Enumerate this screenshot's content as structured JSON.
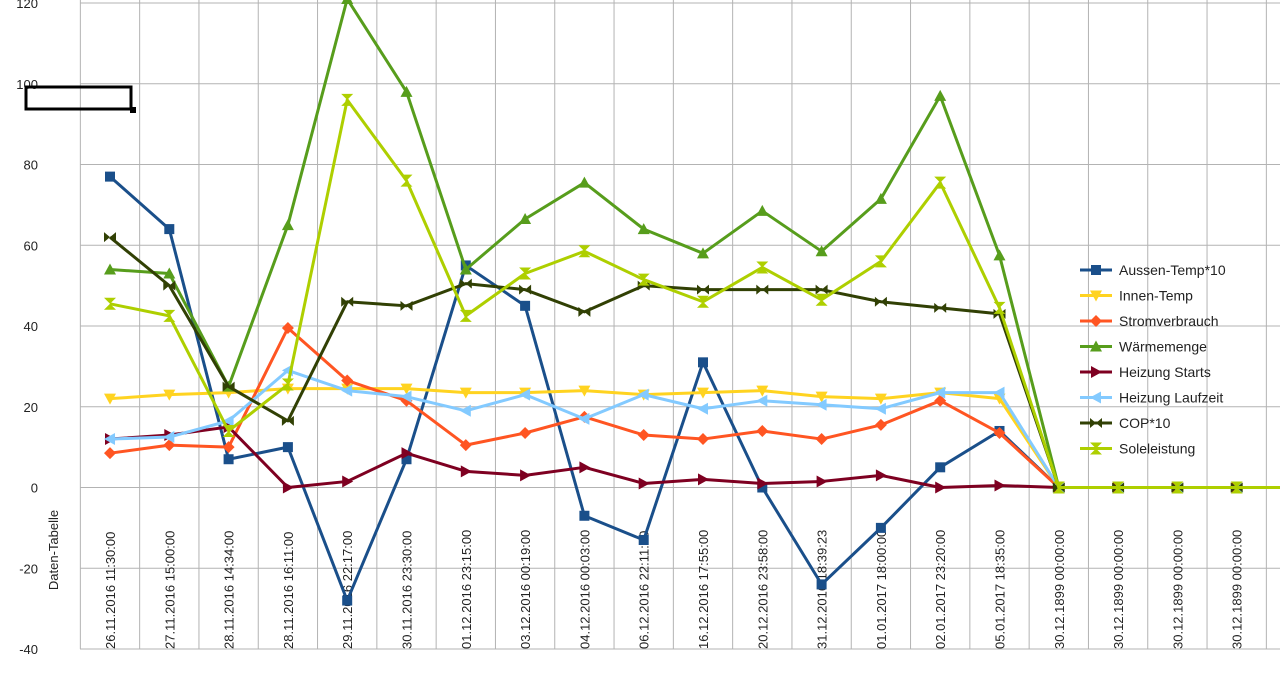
{
  "chart_data": {
    "type": "line",
    "title": "",
    "xlabel": "",
    "ylabel": "Daten-Tabelle",
    "ylim": [
      -40,
      120
    ],
    "yticks": [
      -40,
      -20,
      0,
      20,
      40,
      60,
      80,
      100,
      120
    ],
    "grid": true,
    "legend_position": "right",
    "categories": [
      "26.11.2016 11:30:00",
      "27.11.2016 15:00:00",
      "28.11.2016 14:34:00",
      "28.11.2016 16:11:00",
      "29.11.2016 22:17:00",
      "30.11.2016 23:30:00",
      "01.12.2016 23:15:00",
      "03.12.2016 00:19:00",
      "04.12.2016 00:03:00",
      "06.12.2016 22:11:00",
      "16.12.2016 17:55:00",
      "20.12.2016 23:58:00",
      "31.12.2016 18:39:23",
      "01.01.2017 18:00:00",
      "02.01.2017 23:20:00",
      "05.01.2017 18:35:00",
      "30.12.1899 00:00:00",
      "30.12.1899 00:00:00",
      "30.12.1899 00:00:00",
      "30.12.1899 00:00:00"
    ],
    "series": [
      {
        "name": "Aussen-Temp*10",
        "color": "#1a4f8a",
        "marker": "square",
        "values": [
          77,
          64,
          7,
          10,
          -28,
          7,
          55,
          45,
          -7,
          -13,
          31,
          0,
          -24,
          -10,
          5,
          14,
          0,
          0,
          0,
          0
        ]
      },
      {
        "name": "Innen-Temp",
        "color": "#ffd320",
        "marker": "triangle-down",
        "values": [
          22,
          23,
          23.5,
          24.5,
          24.5,
          24.5,
          23.5,
          23.5,
          24,
          23,
          23.5,
          24,
          22.5,
          22,
          23.5,
          22,
          0,
          0,
          0,
          0
        ]
      },
      {
        "name": "Stromverbrauch",
        "color": "#ff5522",
        "marker": "diamond",
        "values": [
          8.5,
          10.5,
          10,
          39.5,
          26.5,
          21.5,
          10.5,
          13.5,
          17.5,
          13,
          12,
          14,
          12,
          15.5,
          21.5,
          13.5,
          0,
          0,
          0,
          0
        ]
      },
      {
        "name": "Wärmemenge",
        "color": "#579d1c",
        "marker": "triangle-up",
        "values": [
          54,
          53,
          25,
          65,
          121,
          98,
          54,
          66.5,
          75.5,
          64,
          58,
          68.5,
          58.5,
          71.5,
          97,
          57.5,
          0,
          0,
          0,
          0
        ]
      },
      {
        "name": "Heizung Starts",
        "color": "#7e0021",
        "marker": "triangle-right",
        "values": [
          12,
          13,
          15,
          0,
          1.5,
          8.5,
          4,
          3,
          5,
          1,
          2,
          1,
          1.5,
          3,
          0,
          0.5,
          0,
          0,
          0,
          0
        ]
      },
      {
        "name": "Heizung Laufzeit",
        "color": "#83caff",
        "marker": "triangle-left",
        "values": [
          12,
          12.5,
          16.5,
          29,
          24,
          22.5,
          19,
          23,
          17,
          23,
          19.5,
          21.5,
          20.5,
          19.5,
          23.5,
          23.5,
          0,
          0,
          0,
          0
        ]
      },
      {
        "name": "COP*10",
        "color": "#314004",
        "marker": "bowtie",
        "values": [
          62,
          50,
          25,
          16.5,
          46,
          45,
          50.5,
          49,
          43.5,
          50,
          49,
          49,
          49,
          46,
          44.5,
          43,
          0,
          0,
          0,
          0
        ]
      },
      {
        "name": "Soleleistung",
        "color": "#aecf00",
        "marker": "hourglass",
        "values": [
          45.5,
          42.5,
          14,
          25.5,
          96,
          76,
          42.5,
          53,
          58.5,
          51.5,
          46,
          54.5,
          46.5,
          56,
          75.5,
          44.5,
          0,
          0,
          0,
          0
        ]
      }
    ]
  }
}
